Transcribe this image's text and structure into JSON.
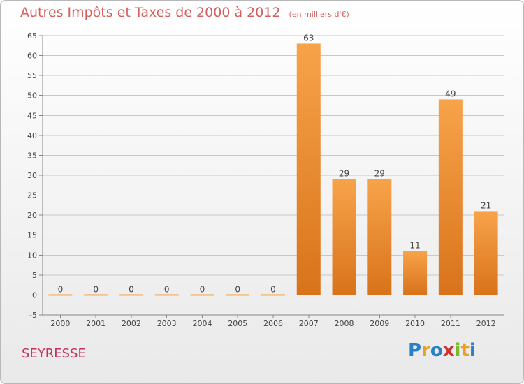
{
  "header": {
    "title": "Autres Impôts et Taxes de 2000 à 2012",
    "subtitle": "(en milliers d'€)"
  },
  "footer": {
    "city": "SEYRESSE",
    "brand": "Proxiti"
  },
  "colors": {
    "title": "#d4605e",
    "bar_top": "#f7a34a",
    "bar_bottom": "#d8731a",
    "city": "#c0335a"
  },
  "chart_data": {
    "type": "bar",
    "title": "Autres Impôts et Taxes de 2000 à 2012",
    "subtitle": "(en milliers d'€)",
    "xlabel": "",
    "ylabel": "",
    "categories": [
      "2000",
      "2001",
      "2002",
      "2003",
      "2004",
      "2005",
      "2006",
      "2007",
      "2008",
      "2009",
      "2010",
      "2011",
      "2012"
    ],
    "values": [
      0,
      0,
      0,
      0,
      0,
      0,
      0,
      63,
      29,
      29,
      11,
      49,
      21
    ],
    "data_labels": [
      "0",
      "0",
      "0",
      "0",
      "0",
      "0",
      "0",
      "63",
      "29",
      "29",
      "11",
      "49",
      "21"
    ],
    "ylim": [
      -5,
      65
    ],
    "yticks": [
      -5,
      0,
      5,
      10,
      15,
      20,
      25,
      30,
      35,
      40,
      45,
      50,
      55,
      60,
      65
    ],
    "grid": true
  }
}
